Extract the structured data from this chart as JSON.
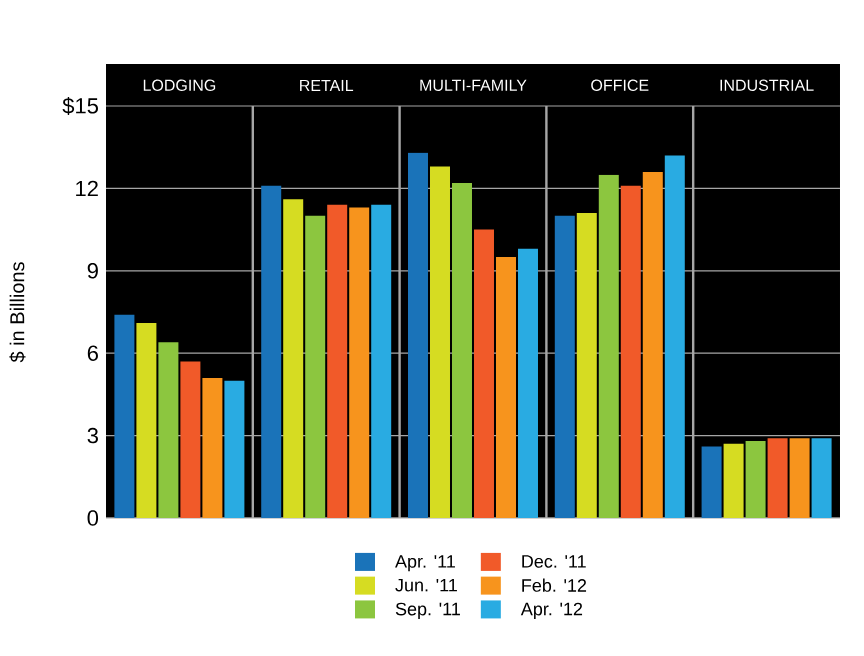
{
  "chart_data": {
    "type": "bar",
    "ylabel": "$ in Billions",
    "categories": [
      "LODGING",
      "RETAIL",
      "MULTI-FAMILY",
      "OFFICE",
      "INDUSTRIAL"
    ],
    "series": [
      {
        "name": "Apr. '11",
        "color": "#1a73b9",
        "values": [
          7.4,
          12.1,
          13.3,
          11.0,
          2.6
        ]
      },
      {
        "name": "Jun. '11",
        "color": "#d6dc22",
        "values": [
          7.1,
          11.6,
          12.8,
          11.1,
          2.7
        ]
      },
      {
        "name": "Sep. '11",
        "color": "#8cc63f",
        "values": [
          6.4,
          11.0,
          12.2,
          12.5,
          2.8
        ]
      },
      {
        "name": "Dec. '11",
        "color": "#f15a29",
        "values": [
          5.7,
          11.4,
          10.5,
          12.1,
          2.9
        ]
      },
      {
        "name": "Feb. '12",
        "color": "#f7941d",
        "values": [
          5.1,
          11.3,
          9.5,
          12.6,
          2.9
        ]
      },
      {
        "name": "Apr. '12",
        "color": "#29abe2",
        "values": [
          5.0,
          11.4,
          9.8,
          13.2,
          2.9
        ]
      }
    ],
    "ylim": [
      0,
      15
    ],
    "yticks": [
      0,
      3,
      6,
      9,
      12,
      {
        "value": 15,
        "label": "$15"
      }
    ],
    "grid": "y",
    "legend": "bottom"
  }
}
